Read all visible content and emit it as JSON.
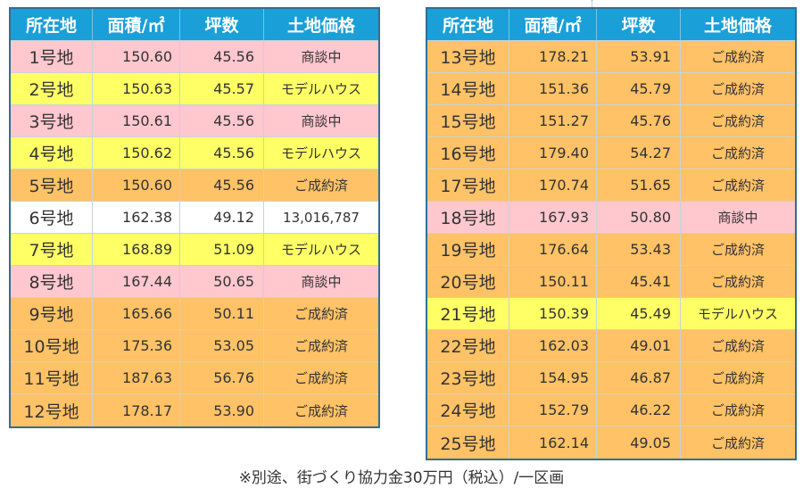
{
  "colors": {
    "header_bg": "#1a9fd8",
    "pink": "#ffc7ce",
    "yellow": "#ffff66",
    "orange": "#ffc266",
    "white": "#ffffff",
    "border": "#2f6f92"
  },
  "header": [
    "所在地",
    "面積/㎡",
    "坪数",
    "土地価格"
  ],
  "left_rows": [
    {
      "lot": "1号地",
      "area": "150.60",
      "tsubo": "45.56",
      "price": "商談中",
      "status": "pink"
    },
    {
      "lot": "2号地",
      "area": "150.63",
      "tsubo": "45.57",
      "price": "モデルハウス",
      "status": "yellow"
    },
    {
      "lot": "3号地",
      "area": "150.61",
      "tsubo": "45.56",
      "price": "商談中",
      "status": "pink"
    },
    {
      "lot": "4号地",
      "area": "150.62",
      "tsubo": "45.56",
      "price": "モデルハウス",
      "status": "yellow"
    },
    {
      "lot": "5号地",
      "area": "150.60",
      "tsubo": "45.56",
      "price": "ご成約済",
      "status": "orange"
    },
    {
      "lot": "6号地",
      "area": "162.38",
      "tsubo": "49.12",
      "price": "13,016,787",
      "status": "white"
    },
    {
      "lot": "7号地",
      "area": "168.89",
      "tsubo": "51.09",
      "price": "モデルハウス",
      "status": "yellow"
    },
    {
      "lot": "8号地",
      "area": "167.44",
      "tsubo": "50.65",
      "price": "商談中",
      "status": "pink"
    },
    {
      "lot": "9号地",
      "area": "165.66",
      "tsubo": "50.11",
      "price": "ご成約済",
      "status": "orange"
    },
    {
      "lot": "10号地",
      "area": "175.36",
      "tsubo": "53.05",
      "price": "ご成約済",
      "status": "orange"
    },
    {
      "lot": "11号地",
      "area": "187.63",
      "tsubo": "56.76",
      "price": "ご成約済",
      "status": "orange"
    },
    {
      "lot": "12号地",
      "area": "178.17",
      "tsubo": "53.90",
      "price": "ご成約済",
      "status": "orange"
    }
  ],
  "right_rows": [
    {
      "lot": "13号地",
      "area": "178.21",
      "tsubo": "53.91",
      "price": "ご成約済",
      "status": "orange"
    },
    {
      "lot": "14号地",
      "area": "151.36",
      "tsubo": "45.79",
      "price": "ご成約済",
      "status": "orange"
    },
    {
      "lot": "15号地",
      "area": "151.27",
      "tsubo": "45.76",
      "price": "ご成約済",
      "status": "orange"
    },
    {
      "lot": "16号地",
      "area": "179.40",
      "tsubo": "54.27",
      "price": "ご成約済",
      "status": "orange"
    },
    {
      "lot": "17号地",
      "area": "170.74",
      "tsubo": "51.65",
      "price": "ご成約済",
      "status": "orange"
    },
    {
      "lot": "18号地",
      "area": "167.93",
      "tsubo": "50.80",
      "price": "商談中",
      "status": "pink"
    },
    {
      "lot": "19号地",
      "area": "176.64",
      "tsubo": "53.43",
      "price": "ご成約済",
      "status": "orange"
    },
    {
      "lot": "20号地",
      "area": "150.11",
      "tsubo": "45.41",
      "price": "ご成約済",
      "status": "orange"
    },
    {
      "lot": "21号地",
      "area": "150.39",
      "tsubo": "45.49",
      "price": "モデルハウス",
      "status": "yellow"
    },
    {
      "lot": "22号地",
      "area": "162.03",
      "tsubo": "49.01",
      "price": "ご成約済",
      "status": "orange"
    },
    {
      "lot": "23号地",
      "area": "154.95",
      "tsubo": "46.87",
      "price": "ご成約済",
      "status": "orange"
    },
    {
      "lot": "24号地",
      "area": "152.79",
      "tsubo": "46.22",
      "price": "ご成約済",
      "status": "orange"
    },
    {
      "lot": "25号地",
      "area": "162.14",
      "tsubo": "49.05",
      "price": "ご成約済",
      "status": "orange"
    }
  ],
  "note": "※別途、街づくり協力金30万円（税込）/一区画"
}
